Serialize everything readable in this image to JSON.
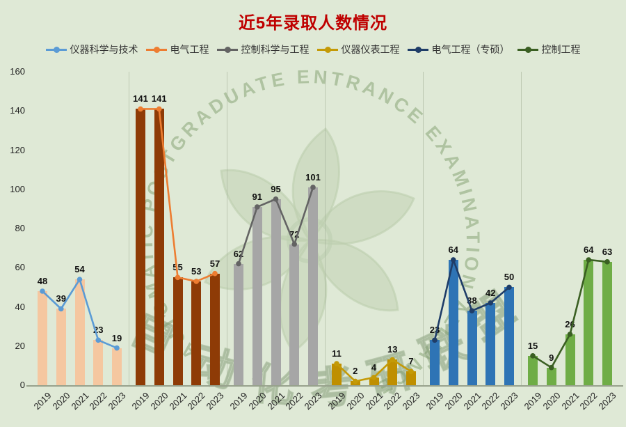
{
  "title": "近5年录取人数情况",
  "title_color": "#bf0000",
  "background_color": "#dfe9d6",
  "watermark": {
    "ring_text": "AUTOMATIC POSTGRADUATE ENTRANCE EXAMINATION ALLIANCE",
    "diagonal_text": "自动化考研联盟"
  },
  "chart_data": {
    "type": "bar",
    "title": "近5年录取人数情况",
    "xlabel": "",
    "ylabel": "",
    "categories": [
      "2019",
      "2020",
      "2021",
      "2022",
      "2023"
    ],
    "series": [
      {
        "name": "仪器科学与技术",
        "values": [
          48,
          39,
          54,
          23,
          19
        ],
        "bar_color": "#f5c7a0",
        "line_color": "#5b9bd5"
      },
      {
        "name": "电气工程",
        "values": [
          141,
          141,
          55,
          53,
          57
        ],
        "bar_color": "#8e3b06",
        "line_color": "#ed7d31"
      },
      {
        "name": "控制科学与工程",
        "values": [
          62,
          91,
          95,
          72,
          101
        ],
        "bar_color": "#a6a6a6",
        "line_color": "#636363"
      },
      {
        "name": "仪器仪表工程",
        "values": [
          11,
          2,
          4,
          13,
          7
        ],
        "bar_color": "#bf8f00",
        "line_color": "#c49a06"
      },
      {
        "name": "电气工程（专硕）",
        "values": [
          23,
          64,
          38,
          42,
          50
        ],
        "bar_color": "#2e74b5",
        "line_color": "#1f3d68"
      },
      {
        "name": "控制工程",
        "values": [
          15,
          9,
          26,
          64,
          63
        ],
        "bar_color": "#6fad46",
        "line_color": "#3a5f22"
      }
    ],
    "ylim": [
      0,
      160
    ],
    "y_ticks": [
      0,
      20,
      40,
      60,
      80,
      100,
      120,
      140,
      160
    ],
    "grid": "group-separators-only",
    "legend_position": "top",
    "value_labels": "above-points"
  }
}
